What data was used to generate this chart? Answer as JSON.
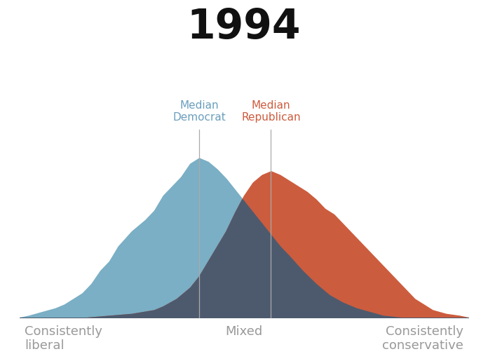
{
  "title": "1994",
  "title_fontsize": 42,
  "title_fontweight": "bold",
  "background_color": "#ffffff",
  "x_min": 0,
  "x_max": 10,
  "median_dem": 4.0,
  "median_rep": 5.6,
  "median_line_color": "#aaaaaa",
  "median_dem_label": "Median\nDemocrat",
  "median_rep_label": "Median\nRepublican",
  "median_dem_color": "#6a9fbe",
  "median_rep_color": "#cc5c3e",
  "dem_color": "#7aafc5",
  "rep_color": "#cc5c3e",
  "overlap_color": "#4d5a6e",
  "xlabel_left": "Consistently\nliberal",
  "xlabel_mid": "Mixed",
  "xlabel_right": "Consistently\nconservative",
  "label_color": "#999999",
  "label_fontsize": 13,
  "dem_x": [
    0.0,
    0.2,
    0.5,
    0.8,
    1.0,
    1.2,
    1.4,
    1.6,
    1.8,
    2.0,
    2.2,
    2.5,
    2.8,
    3.0,
    3.2,
    3.4,
    3.6,
    3.8,
    4.0,
    4.2,
    4.4,
    4.6,
    4.8,
    5.0,
    5.2,
    5.4,
    5.6,
    5.8,
    6.0,
    6.3,
    6.6,
    6.9,
    7.2,
    7.5,
    7.8,
    8.1,
    8.5,
    9.0,
    10.0
  ],
  "dem_y": [
    0.0,
    0.01,
    0.03,
    0.05,
    0.07,
    0.1,
    0.13,
    0.18,
    0.25,
    0.3,
    0.38,
    0.46,
    0.52,
    0.57,
    0.65,
    0.7,
    0.75,
    0.82,
    0.85,
    0.83,
    0.79,
    0.74,
    0.68,
    0.62,
    0.56,
    0.5,
    0.44,
    0.38,
    0.33,
    0.25,
    0.18,
    0.12,
    0.08,
    0.05,
    0.03,
    0.01,
    0.0,
    0.0,
    0.0
  ],
  "rep_x": [
    0.0,
    1.0,
    1.5,
    2.0,
    2.5,
    3.0,
    3.2,
    3.5,
    3.8,
    4.0,
    4.2,
    4.4,
    4.6,
    4.8,
    5.0,
    5.2,
    5.4,
    5.6,
    5.8,
    6.0,
    6.2,
    6.4,
    6.6,
    6.8,
    7.0,
    7.2,
    7.4,
    7.6,
    7.8,
    8.0,
    8.2,
    8.4,
    8.6,
    8.8,
    9.0,
    9.2,
    9.5,
    9.8,
    10.0
  ],
  "rep_y": [
    0.0,
    0.0,
    0.0,
    0.01,
    0.02,
    0.04,
    0.06,
    0.1,
    0.16,
    0.22,
    0.3,
    0.38,
    0.46,
    0.56,
    0.65,
    0.72,
    0.76,
    0.78,
    0.76,
    0.73,
    0.7,
    0.67,
    0.63,
    0.58,
    0.55,
    0.5,
    0.45,
    0.4,
    0.35,
    0.3,
    0.25,
    0.2,
    0.15,
    0.1,
    0.07,
    0.04,
    0.02,
    0.01,
    0.0
  ]
}
